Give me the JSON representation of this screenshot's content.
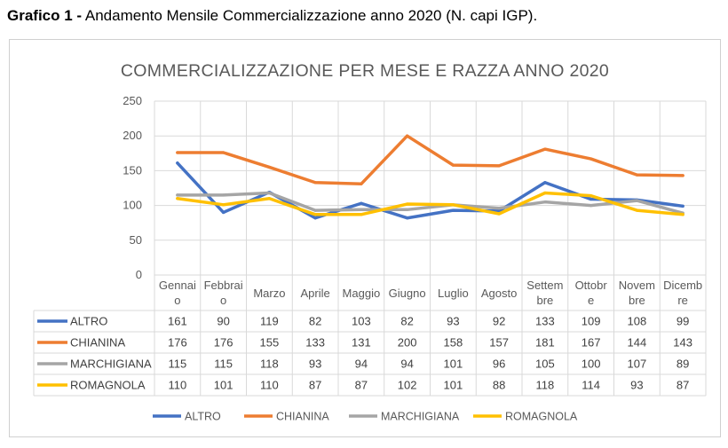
{
  "caption": {
    "bold": "Grafico 1 -",
    "text": " Andamento Mensile Commercializzazione anno 2020 (N. capi IGP)."
  },
  "chart_data": {
    "type": "line",
    "title": "COMMERCIALIZZAZIONE PER MESE E RAZZA ANNO 2020",
    "xlabel": "",
    "ylabel": "",
    "ylim": [
      0,
      250
    ],
    "yticks": [
      0,
      50,
      100,
      150,
      200,
      250
    ],
    "grid": true,
    "legend": "bottom",
    "categories": [
      [
        "Gennai",
        "o"
      ],
      [
        "Febbrai",
        "o"
      ],
      [
        "Marzo"
      ],
      [
        "Aprile"
      ],
      [
        "Maggio"
      ],
      [
        "Giugno"
      ],
      [
        "Luglio"
      ],
      [
        "Agosto"
      ],
      [
        "Settem",
        "bre"
      ],
      [
        "Ottobr",
        "e"
      ],
      [
        "Novem",
        "bre"
      ],
      [
        "Dicemb",
        "re"
      ]
    ],
    "series": [
      {
        "name": "ALTRO",
        "color": "#4472c4",
        "values": [
          161,
          90,
          119,
          82,
          103,
          82,
          93,
          92,
          133,
          109,
          108,
          99
        ]
      },
      {
        "name": "CHIANINA",
        "color": "#ed7d31",
        "values": [
          176,
          176,
          155,
          133,
          131,
          200,
          158,
          157,
          181,
          167,
          144,
          143
        ]
      },
      {
        "name": "MARCHIGIANA",
        "color": "#a5a5a5",
        "values": [
          115,
          115,
          118,
          93,
          94,
          94,
          101,
          96,
          105,
          100,
          107,
          89
        ]
      },
      {
        "name": "ROMAGNOLA",
        "color": "#ffc000",
        "values": [
          110,
          101,
          110,
          87,
          87,
          102,
          101,
          88,
          118,
          114,
          93,
          87
        ]
      }
    ]
  }
}
